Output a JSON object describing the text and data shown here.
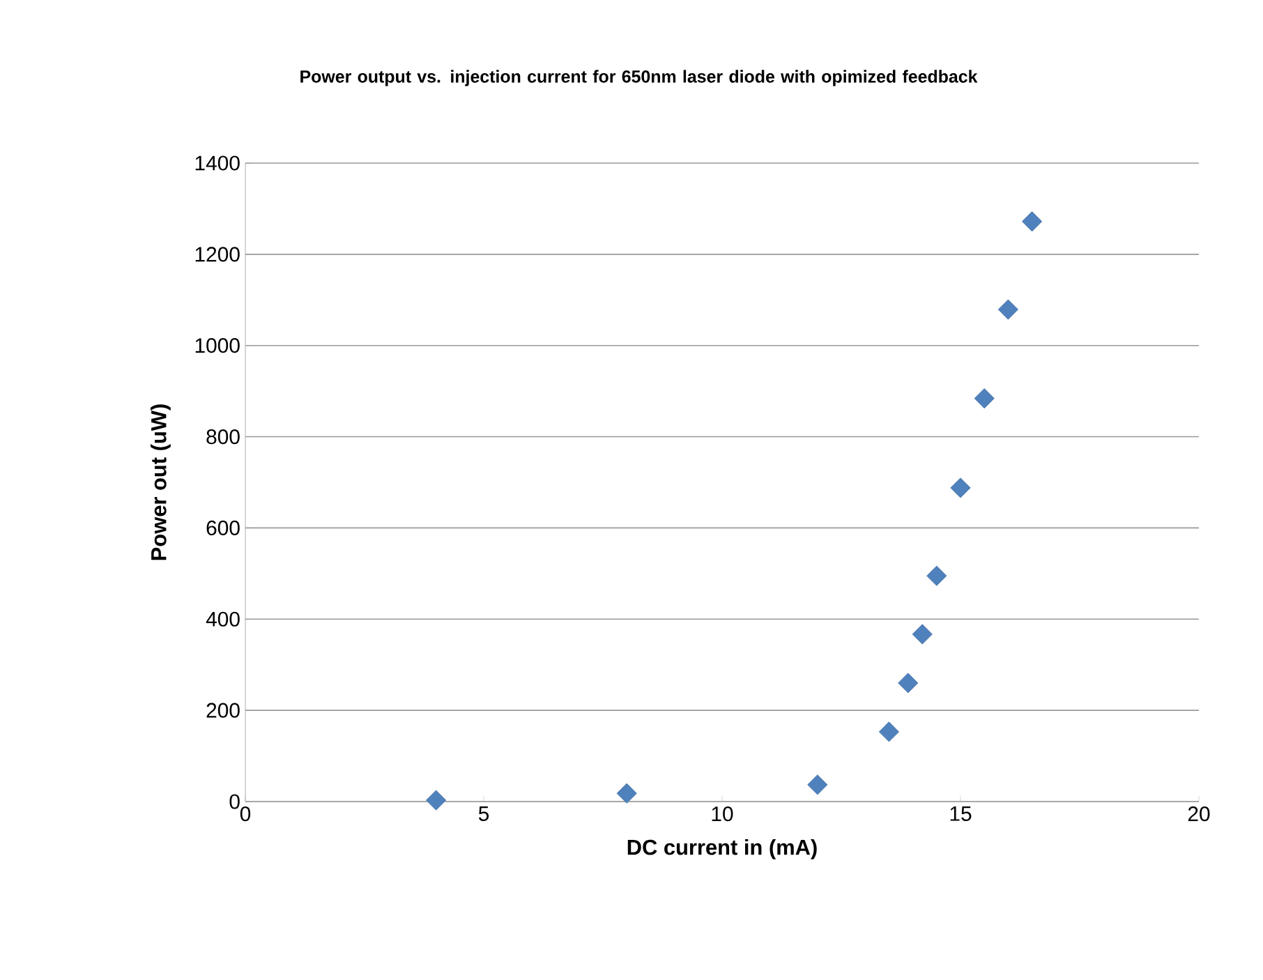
{
  "chart_data": {
    "type": "scatter",
    "title": "Power output vs. injection current for 650nm laser diode with opimized feedback",
    "xlabel": "DC current in (mA)",
    "ylabel": "Power out (uW)",
    "x": [
      4,
      8,
      12,
      13.5,
      13.9,
      14.2,
      14.5,
      15,
      15.5,
      16,
      16.5
    ],
    "series": [
      {
        "color": "#4f81bd",
        "values": [
          3,
          18,
          37,
          153,
          260,
          367,
          495,
          688,
          884,
          1079,
          1272
        ]
      }
    ],
    "xlim": [
      0,
      20
    ],
    "xticks": [
      0,
      5,
      10,
      15,
      20
    ],
    "ylim": [
      0,
      1400
    ],
    "yticks": [
      0,
      200,
      400,
      600,
      800,
      1000,
      1200,
      1400
    ],
    "grid": "y",
    "marker": "diamond"
  }
}
